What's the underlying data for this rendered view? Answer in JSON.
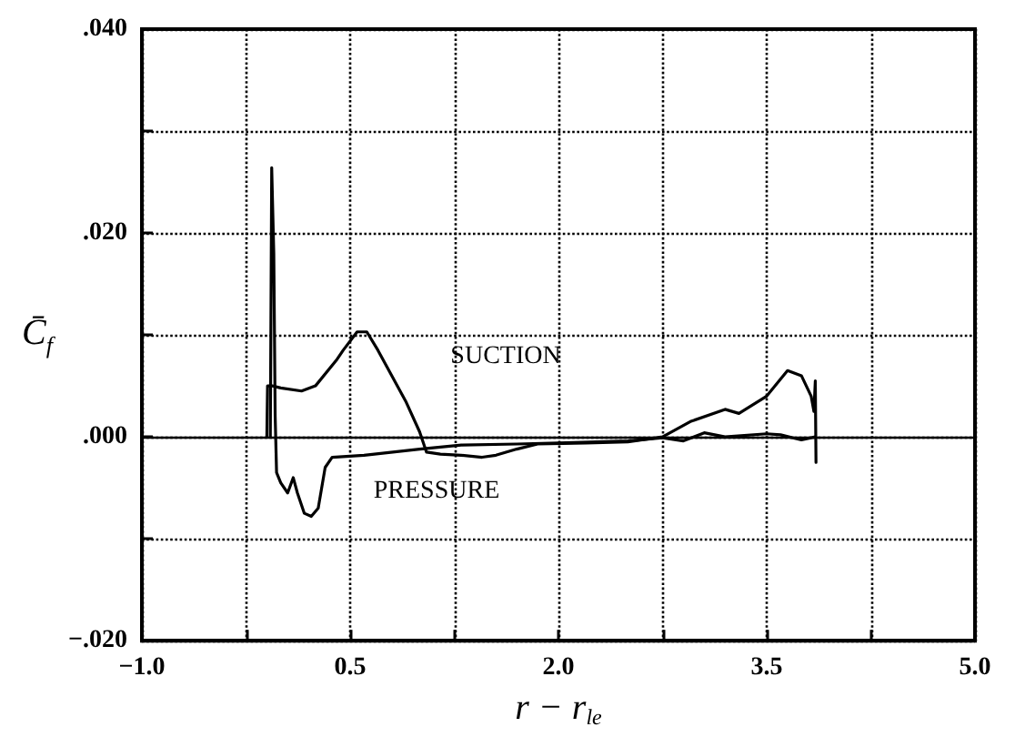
{
  "chart_data": {
    "type": "line",
    "xlabel": "r − r$_{le}$",
    "ylabel": "C̄$_{f}$",
    "xlim": [
      -1.0,
      5.0
    ],
    "ylim": [
      -0.02,
      0.04
    ],
    "xticks": [
      {
        "value": -1.0,
        "label": "−1.0"
      },
      {
        "value": -0.25,
        "label": null
      },
      {
        "value": 0.5,
        "label": "0.5"
      },
      {
        "value": 1.25,
        "label": null
      },
      {
        "value": 2.0,
        "label": "2.0"
      },
      {
        "value": 2.75,
        "label": null
      },
      {
        "value": 3.5,
        "label": "3.5"
      },
      {
        "value": 4.25,
        "label": null
      },
      {
        "value": 5.0,
        "label": "5.0"
      }
    ],
    "yticks": [
      {
        "value": -0.02,
        "label": "−.020"
      },
      {
        "value": -0.01,
        "label": null
      },
      {
        "value": 0.0,
        "label": ".000"
      },
      {
        "value": 0.01,
        "label": null
      },
      {
        "value": 0.02,
        "label": ".020"
      },
      {
        "value": 0.03,
        "label": null
      },
      {
        "value": 0.04,
        "label": ".040"
      }
    ],
    "grid": true,
    "marker": "none",
    "line_style": "solid",
    "ref_lines": [
      {
        "axis": "y",
        "value": 0,
        "color": "#000000",
        "line_style": "solid"
      }
    ],
    "annotations": [
      "SUCTION",
      "PRESSURE"
    ],
    "series": [
      {
        "color": "#000000",
        "x": [
          -0.1,
          -0.095,
          -0.06,
          0.0,
          0.15,
          0.25,
          0.4,
          0.45,
          0.55,
          0.62,
          0.7,
          0.8,
          0.9,
          1.0,
          1.05,
          1.15,
          1.3,
          1.45,
          1.55,
          1.7,
          1.85,
          2.2,
          2.5,
          2.75,
          2.95,
          3.2,
          3.3,
          3.5,
          3.65,
          3.75,
          3.82,
          3.84,
          3.85,
          3.855
        ],
        "values": [
          0.0,
          0.005,
          0.005,
          0.0048,
          0.0045,
          0.005,
          0.0075,
          0.0085,
          0.0103,
          0.0103,
          0.0085,
          0.006,
          0.0035,
          0.0005,
          -0.0015,
          -0.0017,
          -0.0018,
          -0.002,
          -0.0018,
          -0.0012,
          -0.0007,
          -0.0006,
          -0.0005,
          0.0,
          0.0015,
          0.0027,
          0.0023,
          0.004,
          0.0065,
          0.006,
          0.004,
          0.0025,
          0.0055,
          -0.0025
        ]
      },
      {
        "color": "#000000",
        "x": [
          -0.075,
          -0.065,
          -0.05,
          -0.04,
          -0.03,
          0.0,
          0.05,
          0.09,
          0.12,
          0.17,
          0.22,
          0.27,
          0.32,
          0.37,
          0.6,
          1.0,
          1.3,
          1.7,
          2.0,
          2.5,
          2.75,
          2.9,
          3.05,
          3.2,
          3.5,
          3.6,
          3.75,
          3.85
        ],
        "values": [
          0.0,
          0.0264,
          0.018,
          0.002,
          -0.0035,
          -0.0045,
          -0.0055,
          -0.004,
          -0.0055,
          -0.0075,
          -0.0078,
          -0.007,
          -0.003,
          -0.002,
          -0.0018,
          -0.0012,
          -0.0008,
          -0.0007,
          -0.0006,
          -0.0004,
          -0.0001,
          -0.0004,
          0.0004,
          0.0,
          0.0003,
          0.0002,
          -0.0003,
          0.0
        ]
      }
    ]
  }
}
